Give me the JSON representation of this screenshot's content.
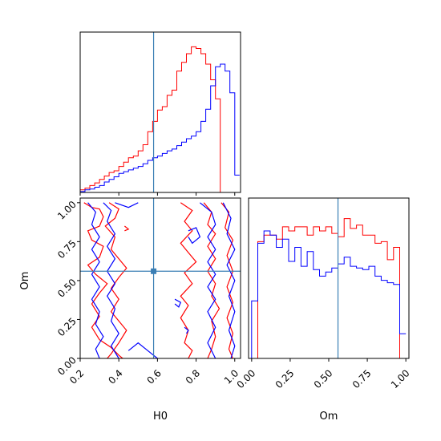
{
  "chart_data": [
    {
      "type": "step",
      "panel": "H0 marginal",
      "x_bin_edges": [
        0.2,
        0.225,
        0.25,
        0.275,
        0.3,
        0.325,
        0.35,
        0.375,
        0.4,
        0.425,
        0.45,
        0.475,
        0.5,
        0.525,
        0.55,
        0.575,
        0.6,
        0.625,
        0.65,
        0.675,
        0.7,
        0.725,
        0.75,
        0.775,
        0.8,
        0.825,
        0.85,
        0.875,
        0.9,
        0.925,
        0.95,
        0.975,
        1.0,
        1.025
      ],
      "xlim": [
        0.2,
        1.03
      ],
      "ylim": [
        0,
        185
      ],
      "truth": 0.58,
      "series": [
        {
          "color": "#ff0000",
          "values": [
            3,
            5,
            8,
            11,
            15,
            19,
            23,
            25,
            30,
            35,
            40,
            42,
            48,
            55,
            70,
            82,
            95,
            99,
            112,
            118,
            140,
            150,
            160,
            168,
            166,
            160,
            148,
            130,
            108,
            0,
            0,
            0,
            0
          ]
        },
        {
          "color": "#0000ff",
          "values": [
            1,
            3,
            4,
            6,
            8,
            12,
            15,
            18,
            22,
            24,
            26,
            28,
            30,
            33,
            37,
            40,
            42,
            45,
            48,
            50,
            54,
            58,
            62,
            65,
            70,
            82,
            96,
            123,
            145,
            148,
            140,
            115,
            20
          ]
        }
      ]
    },
    {
      "type": "contour",
      "panel": "H0 vs Om",
      "xlabel": "H0",
      "ylabel": "Om",
      "xlim": [
        0.2,
        1.03
      ],
      "ylim": [
        0.0,
        1.03
      ],
      "xticks": [
        "0.2",
        "0.4",
        "0.6",
        "0.8",
        "1.0"
      ],
      "yticks": [
        "0.00",
        "0.25",
        "0.50",
        "0.75",
        "1.00"
      ],
      "truth": [
        0.58,
        0.56
      ],
      "series": [
        {
          "color": "#ff0000",
          "levels": [
            [
              [
                0.22,
                1.0
              ],
              [
                0.26,
                0.97
              ],
              [
                0.3,
                0.96
              ],
              [
                0.32,
                0.91
              ],
              [
                0.3,
                0.85
              ],
              [
                0.24,
                0.82
              ],
              [
                0.26,
                0.76
              ],
              [
                0.32,
                0.72
              ],
              [
                0.3,
                0.65
              ],
              [
                0.24,
                0.6
              ],
              [
                0.28,
                0.54
              ],
              [
                0.34,
                0.48
              ],
              [
                0.3,
                0.42
              ],
              [
                0.26,
                0.35
              ],
              [
                0.3,
                0.27
              ],
              [
                0.26,
                0.2
              ],
              [
                0.3,
                0.12
              ],
              [
                0.36,
                0.07
              ],
              [
                0.4,
                0.02
              ],
              [
                0.42,
                0.0
              ]
            ],
            [
              [
                0.35,
                1.0
              ],
              [
                0.4,
                0.96
              ],
              [
                0.38,
                0.9
              ],
              [
                0.33,
                0.85
              ],
              [
                0.38,
                0.78
              ],
              [
                0.36,
                0.7
              ],
              [
                0.4,
                0.64
              ],
              [
                0.44,
                0.58
              ],
              [
                0.4,
                0.52
              ],
              [
                0.36,
                0.45
              ],
              [
                0.4,
                0.38
              ],
              [
                0.36,
                0.3
              ],
              [
                0.4,
                0.24
              ],
              [
                0.44,
                0.18
              ],
              [
                0.4,
                0.1
              ],
              [
                0.36,
                0.03
              ],
              [
                0.34,
                0.0
              ]
            ],
            [
              [
                0.72,
                1.0
              ],
              [
                0.78,
                0.95
              ],
              [
                0.74,
                0.88
              ],
              [
                0.78,
                0.82
              ],
              [
                0.72,
                0.74
              ],
              [
                0.76,
                0.68
              ],
              [
                0.8,
                0.62
              ],
              [
                0.74,
                0.55
              ],
              [
                0.78,
                0.48
              ],
              [
                0.72,
                0.4
              ],
              [
                0.76,
                0.34
              ],
              [
                0.72,
                0.26
              ],
              [
                0.76,
                0.18
              ],
              [
                0.74,
                0.1
              ],
              [
                0.78,
                0.05
              ],
              [
                0.76,
                0.0
              ]
            ],
            [
              [
                0.84,
                1.0
              ],
              [
                0.88,
                0.94
              ],
              [
                0.86,
                0.86
              ],
              [
                0.9,
                0.8
              ],
              [
                0.86,
                0.72
              ],
              [
                0.9,
                0.64
              ],
              [
                0.86,
                0.56
              ],
              [
                0.9,
                0.48
              ],
              [
                0.88,
                0.4
              ],
              [
                0.92,
                0.32
              ],
              [
                0.88,
                0.24
              ],
              [
                0.9,
                0.14
              ],
              [
                0.88,
                0.06
              ],
              [
                0.86,
                0.0
              ]
            ],
            [
              [
                0.93,
                1.0
              ],
              [
                0.97,
                0.94
              ],
              [
                0.95,
                0.84
              ],
              [
                0.99,
                0.76
              ],
              [
                0.96,
                0.66
              ],
              [
                0.99,
                0.56
              ],
              [
                0.96,
                0.46
              ],
              [
                0.99,
                0.36
              ],
              [
                0.96,
                0.26
              ],
              [
                0.99,
                0.16
              ],
              [
                0.97,
                0.06
              ],
              [
                0.99,
                0.0
              ]
            ],
            [
              [
                0.43,
                0.85
              ],
              [
                0.45,
                0.83
              ],
              [
                0.43,
                0.82
              ]
            ]
          ]
        },
        {
          "color": "#0000ff",
          "levels": [
            [
              [
                0.24,
                1.0
              ],
              [
                0.28,
                0.94
              ],
              [
                0.26,
                0.86
              ],
              [
                0.3,
                0.78
              ],
              [
                0.26,
                0.7
              ],
              [
                0.3,
                0.62
              ],
              [
                0.26,
                0.54
              ],
              [
                0.3,
                0.46
              ],
              [
                0.26,
                0.38
              ],
              [
                0.3,
                0.3
              ],
              [
                0.28,
                0.22
              ],
              [
                0.32,
                0.14
              ],
              [
                0.28,
                0.06
              ],
              [
                0.3,
                0.0
              ]
            ],
            [
              [
                0.32,
                1.0
              ],
              [
                0.36,
                0.95
              ],
              [
                0.34,
                0.88
              ],
              [
                0.38,
                0.8
              ],
              [
                0.34,
                0.72
              ],
              [
                0.38,
                0.64
              ],
              [
                0.34,
                0.56
              ],
              [
                0.38,
                0.48
              ],
              [
                0.34,
                0.4
              ],
              [
                0.38,
                0.32
              ],
              [
                0.36,
                0.24
              ],
              [
                0.4,
                0.16
              ],
              [
                0.36,
                0.08
              ],
              [
                0.4,
                0.0
              ]
            ],
            [
              [
                0.38,
                1.0
              ],
              [
                0.45,
                0.97
              ],
              [
                0.5,
                1.0
              ]
            ],
            [
              [
                0.45,
                0.05
              ],
              [
                0.5,
                0.1
              ],
              [
                0.55,
                0.05
              ],
              [
                0.6,
                0.0
              ]
            ],
            [
              [
                0.82,
                1.0
              ],
              [
                0.88,
                0.94
              ],
              [
                0.9,
                0.86
              ],
              [
                0.86,
                0.78
              ],
              [
                0.9,
                0.7
              ],
              [
                0.86,
                0.62
              ],
              [
                0.9,
                0.54
              ],
              [
                0.86,
                0.46
              ],
              [
                0.9,
                0.38
              ],
              [
                0.86,
                0.3
              ],
              [
                0.9,
                0.2
              ],
              [
                0.86,
                0.1
              ],
              [
                0.9,
                0.0
              ]
            ],
            [
              [
                0.94,
                1.0
              ],
              [
                0.98,
                0.9
              ],
              [
                0.96,
                0.8
              ],
              [
                1.0,
                0.7
              ],
              [
                0.96,
                0.6
              ],
              [
                1.0,
                0.5
              ],
              [
                0.97,
                0.4
              ],
              [
                1.0,
                0.3
              ],
              [
                0.97,
                0.18
              ],
              [
                1.0,
                0.08
              ],
              [
                0.98,
                0.0
              ]
            ],
            [
              [
                0.76,
                0.82
              ],
              [
                0.8,
                0.84
              ],
              [
                0.82,
                0.78
              ],
              [
                0.78,
                0.74
              ],
              [
                0.76,
                0.78
              ]
            ],
            [
              [
                0.69,
                0.38
              ],
              [
                0.72,
                0.36
              ],
              [
                0.71,
                0.33
              ],
              [
                0.69,
                0.35
              ]
            ],
            [
              [
                0.74,
                0.2
              ],
              [
                0.76,
                0.18
              ],
              [
                0.75,
                0.16
              ]
            ]
          ]
        }
      ]
    },
    {
      "type": "step",
      "panel": "Om marginal",
      "xlabel": "Om",
      "x_bin_edges": [
        0.0,
        0.04,
        0.08,
        0.12,
        0.16,
        0.2,
        0.24,
        0.28,
        0.32,
        0.36,
        0.4,
        0.44,
        0.48,
        0.52,
        0.56,
        0.6,
        0.64,
        0.68,
        0.72,
        0.76,
        0.8,
        0.84,
        0.88,
        0.92,
        0.96,
        1.0
      ],
      "xlim": [
        -0.02,
        1.02
      ],
      "ylim": [
        0,
        195
      ],
      "xticks": [
        "0.00",
        "0.25",
        "0.50",
        "0.75",
        "1.00"
      ],
      "truth": 0.56,
      "series": [
        {
          "color": "#ff0000",
          "values": [
            0,
            142,
            150,
            150,
            145,
            160,
            155,
            160,
            160,
            150,
            160,
            155,
            160,
            152,
            148,
            170,
            158,
            162,
            150,
            150,
            140,
            142,
            120,
            135,
            0
          ]
        },
        {
          "color": "#0000ff",
          "values": [
            70,
            140,
            155,
            150,
            135,
            145,
            118,
            135,
            112,
            130,
            108,
            100,
            105,
            110,
            115,
            123,
            112,
            110,
            108,
            112,
            100,
            95,
            92,
            90,
            30
          ]
        }
      ]
    }
  ]
}
